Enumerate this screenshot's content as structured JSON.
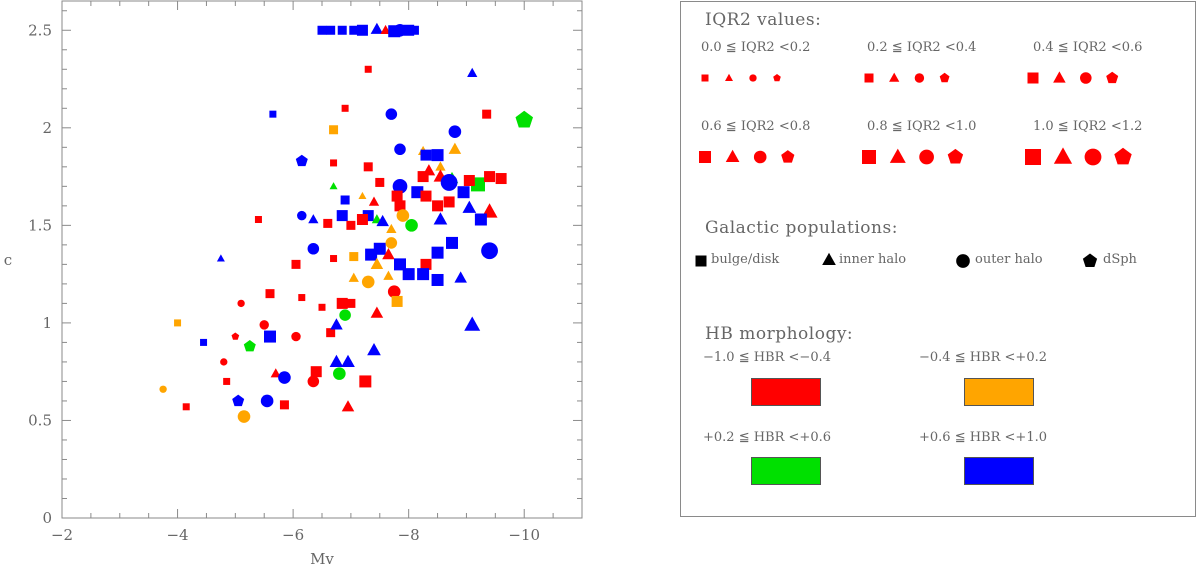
{
  "chart_data": {
    "type": "scatter",
    "xlabel": "Mv",
    "ylabel": "c",
    "xlim": [
      -2,
      -11
    ],
    "ylim": [
      0,
      2.65
    ],
    "xticks": [
      -2,
      -4,
      -6,
      -8,
      -10
    ],
    "yticks": [
      0,
      0.5,
      1,
      1.5,
      2,
      2.5
    ],
    "xtick_labels": [
      "−2",
      "−4",
      "−6",
      "−8",
      "−10"
    ],
    "ytick_labels": [
      "0",
      "0.5",
      "1",
      "1.5",
      "2",
      "2.5"
    ],
    "colors": {
      "red": "#ff0000",
      "orange": "#ffa500",
      "green": "#00e000",
      "blue": "#0000ff"
    },
    "points": [
      [
        -6.5,
        2.5,
        "s",
        "blue",
        1
      ],
      [
        -6.65,
        2.5,
        "s",
        "blue",
        1
      ],
      [
        -6.85,
        2.5,
        "s",
        "blue",
        1
      ],
      [
        -7.05,
        2.5,
        "s",
        "blue",
        1
      ],
      [
        -7.2,
        2.5,
        "s",
        "blue",
        2
      ],
      [
        -7.45,
        2.505,
        "t",
        "blue",
        2
      ],
      [
        -7.6,
        2.5,
        "t",
        "red",
        1
      ],
      [
        -7.75,
        2.495,
        "s",
        "blue",
        3
      ],
      [
        -7.85,
        2.5,
        "c",
        "blue",
        3
      ],
      [
        -8.0,
        2.5,
        "s",
        "blue",
        2
      ],
      [
        -8.1,
        2.5,
        "s",
        "blue",
        1
      ],
      [
        -7.3,
        2.3,
        "s",
        "red",
        0
      ],
      [
        -9.1,
        2.28,
        "t",
        "blue",
        1
      ],
      [
        -6.9,
        2.1,
        "s",
        "red",
        0
      ],
      [
        -5.65,
        2.07,
        "s",
        "blue",
        0
      ],
      [
        -7.7,
        2.07,
        "c",
        "blue",
        2
      ],
      [
        -9.35,
        2.07,
        "s",
        "red",
        1
      ],
      [
        -10.0,
        2.04,
        "p",
        "green",
        5
      ],
      [
        -6.7,
        1.99,
        "s",
        "orange",
        1
      ],
      [
        -8.8,
        1.98,
        "c",
        "blue",
        3
      ],
      [
        -6.15,
        1.83,
        "p",
        "blue",
        2
      ],
      [
        -6.7,
        1.82,
        "s",
        "red",
        0
      ],
      [
        -7.3,
        1.8,
        "s",
        "red",
        1
      ],
      [
        -7.85,
        1.89,
        "c",
        "blue",
        2
      ],
      [
        -8.25,
        1.88,
        "t",
        "orange",
        1
      ],
      [
        -8.3,
        1.86,
        "s",
        "blue",
        2
      ],
      [
        -8.5,
        1.86,
        "s",
        "blue",
        3
      ],
      [
        -8.8,
        1.89,
        "t",
        "orange",
        2
      ],
      [
        -8.55,
        1.8,
        "t",
        "orange",
        1
      ],
      [
        -8.35,
        1.78,
        "t",
        "red",
        2
      ],
      [
        -8.55,
        1.75,
        "t",
        "red",
        3
      ],
      [
        -8.25,
        1.75,
        "s",
        "red",
        2
      ],
      [
        -7.85,
        1.7,
        "c",
        "blue",
        4
      ],
      [
        -8.15,
        1.67,
        "s",
        "blue",
        3
      ],
      [
        -8.75,
        1.74,
        "t",
        "green",
        2
      ],
      [
        -9.2,
        1.71,
        "s",
        "green",
        4
      ],
      [
        -9.05,
        1.73,
        "s",
        "red",
        2
      ],
      [
        -9.4,
        1.75,
        "s",
        "red",
        2
      ],
      [
        -9.6,
        1.74,
        "s",
        "red",
        2
      ],
      [
        -8.7,
        1.72,
        "c",
        "blue",
        5
      ],
      [
        -8.95,
        1.67,
        "s",
        "blue",
        3
      ],
      [
        -6.7,
        1.7,
        "t",
        "green",
        0
      ],
      [
        -7.5,
        1.72,
        "s",
        "red",
        1
      ],
      [
        -7.3,
        1.55,
        "s",
        "blue",
        2
      ],
      [
        -6.9,
        1.63,
        "s",
        "blue",
        1
      ],
      [
        -7.2,
        1.65,
        "t",
        "orange",
        0
      ],
      [
        -7.4,
        1.62,
        "t",
        "red",
        1
      ],
      [
        -7.8,
        1.65,
        "s",
        "red",
        2
      ],
      [
        -7.85,
        1.6,
        "s",
        "red",
        2
      ],
      [
        -8.3,
        1.65,
        "s",
        "red",
        2
      ],
      [
        -8.5,
        1.6,
        "s",
        "red",
        2
      ],
      [
        -8.7,
        1.62,
        "s",
        "red",
        2
      ],
      [
        -9.05,
        1.59,
        "t",
        "blue",
        3
      ],
      [
        -9.4,
        1.57,
        "t",
        "red",
        4
      ],
      [
        -9.25,
        1.53,
        "s",
        "blue",
        3
      ],
      [
        -6.15,
        1.55,
        "c",
        "blue",
        1
      ],
      [
        -6.35,
        1.53,
        "t",
        "blue",
        1
      ],
      [
        -6.6,
        1.51,
        "s",
        "red",
        1
      ],
      [
        -6.85,
        1.55,
        "s",
        "blue",
        2
      ],
      [
        -7.0,
        1.5,
        "s",
        "red",
        1
      ],
      [
        -7.2,
        1.53,
        "s",
        "red",
        2
      ],
      [
        -7.45,
        1.53,
        "t",
        "green",
        1
      ],
      [
        -7.55,
        1.52,
        "t",
        "blue",
        2
      ],
      [
        -7.9,
        1.55,
        "c",
        "orange",
        3
      ],
      [
        -8.05,
        1.5,
        "c",
        "green",
        3
      ],
      [
        -8.55,
        1.53,
        "t",
        "blue",
        3
      ],
      [
        -5.4,
        1.53,
        "s",
        "red",
        0
      ],
      [
        -4.75,
        1.33,
        "t",
        "blue",
        0
      ],
      [
        -6.05,
        1.3,
        "s",
        "red",
        1
      ],
      [
        -6.35,
        1.38,
        "c",
        "blue",
        2
      ],
      [
        -6.7,
        1.33,
        "s",
        "red",
        0
      ],
      [
        -7.05,
        1.34,
        "s",
        "orange",
        1
      ],
      [
        -7.35,
        1.35,
        "s",
        "blue",
        3
      ],
      [
        -7.45,
        1.3,
        "t",
        "orange",
        2
      ],
      [
        -7.5,
        1.38,
        "s",
        "blue",
        3
      ],
      [
        -7.7,
        1.41,
        "c",
        "orange",
        2
      ],
      [
        -7.7,
        1.48,
        "t",
        "orange",
        1
      ],
      [
        -7.65,
        1.35,
        "t",
        "red",
        2
      ],
      [
        -7.85,
        1.3,
        "s",
        "blue",
        3
      ],
      [
        -8.0,
        1.25,
        "s",
        "blue",
        3
      ],
      [
        -8.3,
        1.3,
        "s",
        "red",
        2
      ],
      [
        -8.5,
        1.36,
        "s",
        "blue",
        3
      ],
      [
        -8.75,
        1.41,
        "s",
        "blue",
        3
      ],
      [
        -8.25,
        1.25,
        "s",
        "blue",
        3
      ],
      [
        -8.5,
        1.22,
        "s",
        "blue",
        3
      ],
      [
        -8.9,
        1.23,
        "t",
        "blue",
        2
      ],
      [
        -9.4,
        1.37,
        "c",
        "blue",
        5
      ],
      [
        -7.05,
        1.23,
        "t",
        "orange",
        1
      ],
      [
        -7.3,
        1.21,
        "c",
        "orange",
        3
      ],
      [
        -7.65,
        1.24,
        "t",
        "orange",
        1
      ],
      [
        -7.75,
        1.16,
        "c",
        "red",
        3
      ],
      [
        -7.8,
        1.11,
        "s",
        "orange",
        2
      ],
      [
        -5.6,
        1.15,
        "s",
        "red",
        1
      ],
      [
        -5.1,
        1.1,
        "c",
        "red",
        0
      ],
      [
        -6.15,
        1.13,
        "s",
        "red",
        0
      ],
      [
        -6.85,
        1.1,
        "s",
        "red",
        2
      ],
      [
        -7.0,
        1.1,
        "s",
        "red",
        1
      ],
      [
        -6.5,
        1.08,
        "s",
        "red",
        0
      ],
      [
        -6.9,
        1.04,
        "c",
        "green",
        2
      ],
      [
        -7.45,
        1.05,
        "t",
        "red",
        2
      ],
      [
        -6.65,
        0.95,
        "s",
        "red",
        1
      ],
      [
        -6.75,
        0.99,
        "t",
        "blue",
        2
      ],
      [
        -5.5,
        0.99,
        "c",
        "red",
        1
      ],
      [
        -6.05,
        0.93,
        "c",
        "red",
        1
      ],
      [
        -4.0,
        1.0,
        "s",
        "orange",
        0
      ],
      [
        -4.45,
        0.9,
        "s",
        "blue",
        0
      ],
      [
        -5.0,
        0.93,
        "p",
        "red",
        0
      ],
      [
        -5.25,
        0.88,
        "p",
        "green",
        2
      ],
      [
        -5.6,
        0.93,
        "s",
        "blue",
        3
      ],
      [
        -4.8,
        0.8,
        "c",
        "red",
        0
      ],
      [
        -4.85,
        0.7,
        "s",
        "red",
        0
      ],
      [
        -5.7,
        0.74,
        "t",
        "red",
        1
      ],
      [
        -5.85,
        0.72,
        "c",
        "blue",
        3
      ],
      [
        -6.4,
        0.75,
        "s",
        "red",
        2
      ],
      [
        -6.35,
        0.7,
        "c",
        "red",
        2
      ],
      [
        -6.75,
        0.8,
        "t",
        "blue",
        3
      ],
      [
        -6.95,
        0.8,
        "t",
        "blue",
        3
      ],
      [
        -6.8,
        0.74,
        "c",
        "green",
        3
      ],
      [
        -7.25,
        0.7,
        "s",
        "red",
        3
      ],
      [
        -7.4,
        0.86,
        "t",
        "blue",
        3
      ],
      [
        -9.1,
        0.99,
        "t",
        "blue",
        4
      ],
      [
        -3.75,
        0.66,
        "c",
        "orange",
        0
      ],
      [
        -4.15,
        0.57,
        "s",
        "red",
        0
      ],
      [
        -5.05,
        0.6,
        "p",
        "blue",
        2
      ],
      [
        -5.55,
        0.6,
        "c",
        "blue",
        3
      ],
      [
        -5.15,
        0.52,
        "c",
        "orange",
        3
      ],
      [
        -5.85,
        0.58,
        "s",
        "red",
        1
      ],
      [
        -6.95,
        0.57,
        "t",
        "red",
        2
      ]
    ]
  },
  "legend": {
    "iqr_title": "IQR2 values:",
    "iqr_ranges": [
      "0.0 ≦ IQR2 <0.2",
      "0.2 ≦ IQR2 <0.4",
      "0.4 ≦ IQR2 <0.6",
      "0.6 ≦ IQR2 <0.8",
      "0.8 ≦ IQR2 <1.0",
      "1.0 ≦ IQR2 <1.2"
    ],
    "pop_title": "Galactic populations:",
    "populations": [
      "bulge/disk",
      "inner halo",
      "outer halo",
      "dSph"
    ],
    "hb_title": "HB morphology:",
    "hb_ranges": [
      "−1.0 ≦ HBR <−0.4",
      "−0.4 ≦ HBR <+0.2",
      "+0.2 ≦ HBR <+0.6",
      "+0.6 ≦ HBR <+1.0"
    ],
    "hb_colors": [
      "#ff0000",
      "#ffa500",
      "#00e000",
      "#0000ff"
    ]
  }
}
